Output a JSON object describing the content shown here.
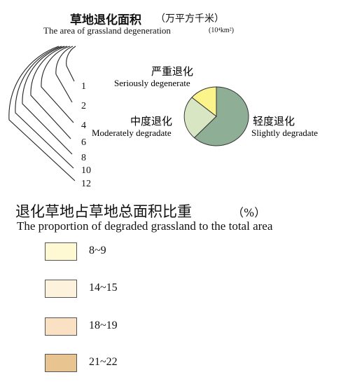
{
  "area_legend": {
    "title_cn": "草地退化面积",
    "title_cn_unit": "（万平方千米）",
    "title_en": "The area of grassland degeneration",
    "title_en_unit": "(10⁴km²)",
    "ring_values": [
      "1",
      "2",
      "4",
      "6",
      "8",
      "10",
      "12"
    ]
  },
  "pie_legend": {
    "segments": [
      {
        "cn": "严重退化",
        "en": "Seriously degenerate",
        "color": "#fbf48a"
      },
      {
        "cn": "中度退化",
        "en": "Moderately degradate",
        "color": "#d9e6c4"
      },
      {
        "cn": "轻度退化",
        "en": "Slightly degradate",
        "color": "#8fae96"
      }
    ]
  },
  "proportion_legend": {
    "title_cn": "退化草地占草地总面积比重",
    "title_unit": "（%）",
    "title_en": "The proportion of degraded grassland to the total area",
    "classes": [
      {
        "label": "8~9",
        "color": "#fef9d2"
      },
      {
        "label": "14~15",
        "color": "#fdf2dc"
      },
      {
        "label": "18~19",
        "color": "#fbe1c4"
      },
      {
        "label": "21~22",
        "color": "#e8c590"
      }
    ]
  }
}
